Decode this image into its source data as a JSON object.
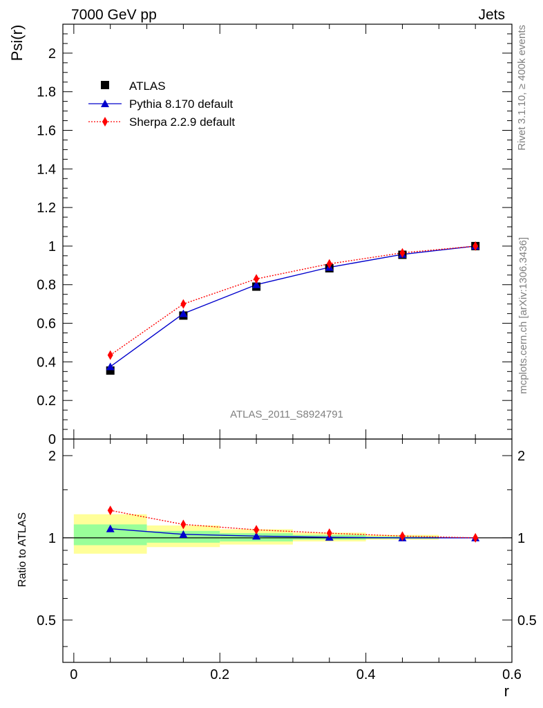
{
  "header": {
    "left": "7000 GeV pp",
    "right": "Jets"
  },
  "side_labels": {
    "rivet": "Rivet 3.1.10, ≥ 400k events",
    "mcplots": "mcplots.cern.ch [arXiv:1306.3436]"
  },
  "watermark": "ATLAS_2011_S8924791",
  "chart_data": [
    {
      "type": "line",
      "panel": "main",
      "ylabel": "Psi(r)",
      "xlim": [
        -0.015,
        0.6
      ],
      "ylim": [
        0,
        2.15
      ],
      "yticks": [
        0,
        0.2,
        0.4,
        0.6,
        0.8,
        1,
        1.2,
        1.4,
        1.6,
        1.8,
        2
      ],
      "ytick_labels": [
        "0",
        "0.2",
        "0.4",
        "0.6",
        "0.8",
        "1",
        "1.2",
        "1.4",
        "1.6",
        "1.8",
        "2"
      ],
      "x": [
        0.05,
        0.15,
        0.25,
        0.35,
        0.45,
        0.55
      ],
      "series": [
        {
          "name": "ATLAS",
          "marker": "square",
          "color": "#000000",
          "values": [
            0.355,
            0.64,
            0.79,
            0.885,
            0.955,
            1.0
          ]
        },
        {
          "name": "Pythia 8.170 default",
          "marker": "triangle",
          "color": "#0000cc",
          "line": "solid",
          "values": [
            0.375,
            0.65,
            0.8,
            0.89,
            0.957,
            1.0
          ]
        },
        {
          "name": "Sherpa 2.2.9 default",
          "marker": "diamond",
          "color": "#ff0000",
          "line": "dotted",
          "values": [
            0.435,
            0.7,
            0.83,
            0.908,
            0.965,
            1.0
          ]
        }
      ],
      "legend_position": "top-left"
    },
    {
      "type": "line",
      "panel": "ratio",
      "ylabel": "Ratio to ATLAS",
      "xlabel": "r",
      "xlim": [
        -0.015,
        0.6
      ],
      "ylim": [
        0.35,
        2.3
      ],
      "yticks": [
        0.5,
        1,
        2
      ],
      "ytick_labels": [
        "0.5",
        "1",
        "2"
      ],
      "xticks": [
        0,
        0.2,
        0.4,
        0.6
      ],
      "xtick_labels": [
        "0",
        "0.2",
        "0.4",
        "0.6"
      ],
      "x": [
        0.05,
        0.15,
        0.25,
        0.35,
        0.45,
        0.55
      ],
      "bands": [
        {
          "x0": 0.0,
          "x1": 0.1,
          "yellow": [
            0.875,
            1.22
          ],
          "green": [
            0.94,
            1.12
          ]
        },
        {
          "x0": 0.1,
          "x1": 0.2,
          "yellow": [
            0.925,
            1.11
          ],
          "green": [
            0.96,
            1.06
          ]
        },
        {
          "x0": 0.2,
          "x1": 0.3,
          "yellow": [
            0.945,
            1.075
          ],
          "green": [
            0.97,
            1.04
          ]
        },
        {
          "x0": 0.3,
          "x1": 0.4,
          "yellow": [
            0.97,
            1.045
          ],
          "green": [
            0.985,
            1.025
          ]
        },
        {
          "x0": 0.4,
          "x1": 0.5,
          "yellow": [
            0.985,
            1.025
          ],
          "green": [
            0.992,
            1.012
          ]
        }
      ],
      "series": [
        {
          "name": "Pythia 8.170 default",
          "marker": "triangle",
          "color": "#0000cc",
          "line": "solid",
          "values": [
            1.08,
            1.03,
            1.015,
            1.005,
            1.0,
            1.0
          ]
        },
        {
          "name": "Sherpa 2.2.9 default",
          "marker": "diamond",
          "color": "#ff0000",
          "line": "dotted",
          "values": [
            1.26,
            1.12,
            1.07,
            1.04,
            1.015,
            1.0
          ]
        }
      ]
    }
  ]
}
